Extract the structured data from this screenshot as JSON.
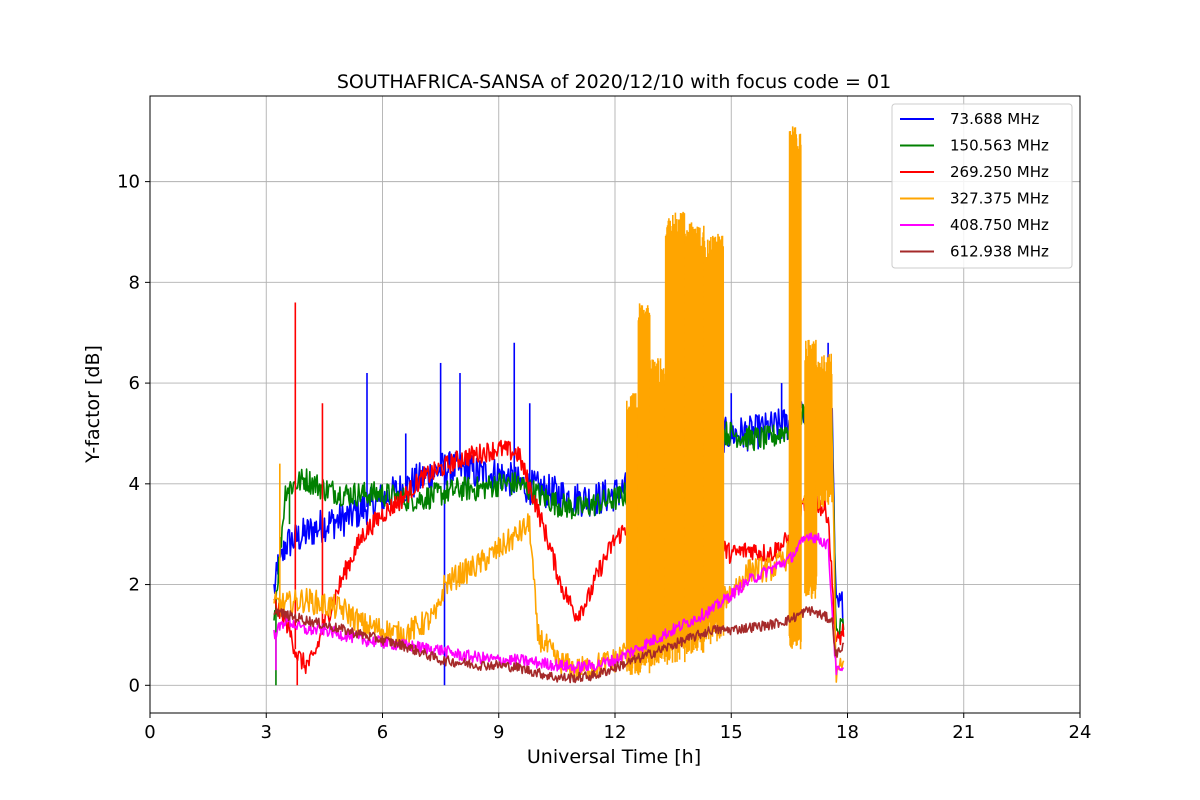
{
  "chart_data": {
    "type": "line",
    "title": "SOUTHAFRICA-SANSA of 2020/12/10 with focus code = 01",
    "xlabel": "Universal Time [h]",
    "ylabel": "Y-factor [dB]",
    "xlim": [
      0,
      24
    ],
    "ylim": [
      -0.55,
      11.7
    ],
    "xticks": [
      0,
      3,
      6,
      9,
      12,
      15,
      18,
      21,
      24
    ],
    "yticks": [
      0,
      2,
      4,
      6,
      8,
      10
    ],
    "grid": true,
    "legend_position": "top-right",
    "series": [
      {
        "name": " 73.688 MHz",
        "color": "#0000ff",
        "noise": 0.35,
        "spikes": [
          [
            3.3,
            2.6
          ],
          [
            5.6,
            6.2
          ],
          [
            6.6,
            5.0
          ],
          [
            7.5,
            6.4
          ],
          [
            8.0,
            6.2
          ],
          [
            9.4,
            6.8
          ],
          [
            7.6,
            0.0
          ],
          [
            9.8,
            5.6
          ],
          [
            15.0,
            5.8
          ],
          [
            16.3,
            6.0
          ],
          [
            17.5,
            6.8
          ]
        ],
        "points": [
          [
            3.2,
            1.9
          ],
          [
            3.5,
            2.8
          ],
          [
            4.0,
            3.0
          ],
          [
            4.5,
            3.2
          ],
          [
            5.0,
            3.3
          ],
          [
            5.5,
            3.5
          ],
          [
            6.0,
            3.7
          ],
          [
            6.5,
            3.9
          ],
          [
            7.0,
            4.1
          ],
          [
            7.5,
            4.3
          ],
          [
            8.0,
            4.3
          ],
          [
            8.5,
            4.2
          ],
          [
            9.0,
            4.2
          ],
          [
            9.5,
            4.0
          ],
          [
            10.0,
            3.9
          ],
          [
            10.5,
            3.8
          ],
          [
            11.0,
            3.7
          ],
          [
            11.5,
            3.7
          ],
          [
            12.0,
            3.8
          ],
          [
            12.3,
            3.9
          ],
          [
            14.5,
            4.9
          ],
          [
            15.0,
            5.0
          ],
          [
            15.5,
            5.0
          ],
          [
            16.0,
            5.1
          ],
          [
            16.5,
            5.2
          ],
          [
            17.0,
            5.4
          ],
          [
            17.6,
            5.4
          ],
          [
            17.7,
            1.5
          ],
          [
            17.9,
            1.6
          ]
        ]
      },
      {
        "name": "150.563 MHz",
        "color": "#008000",
        "noise": 0.25,
        "spikes": [
          [
            3.25,
            0.0
          ],
          [
            3.6,
            3.2
          ]
        ],
        "points": [
          [
            3.2,
            1.3
          ],
          [
            3.5,
            3.9
          ],
          [
            4.0,
            4.1
          ],
          [
            4.5,
            3.9
          ],
          [
            5.0,
            3.8
          ],
          [
            5.5,
            3.8
          ],
          [
            6.0,
            3.8
          ],
          [
            6.5,
            3.7
          ],
          [
            7.0,
            3.7
          ],
          [
            7.5,
            3.8
          ],
          [
            8.0,
            3.9
          ],
          [
            8.5,
            3.9
          ],
          [
            9.0,
            4.0
          ],
          [
            9.5,
            4.0
          ],
          [
            10.0,
            3.8
          ],
          [
            10.5,
            3.6
          ],
          [
            11.0,
            3.5
          ],
          [
            11.5,
            3.6
          ],
          [
            12.0,
            3.7
          ],
          [
            12.3,
            3.8
          ],
          [
            14.5,
            5.0
          ],
          [
            15.0,
            5.0
          ],
          [
            15.5,
            4.9
          ],
          [
            16.0,
            4.9
          ],
          [
            16.5,
            5.1
          ],
          [
            17.0,
            5.5
          ],
          [
            17.6,
            5.5
          ],
          [
            17.7,
            1.0
          ],
          [
            17.9,
            1.2
          ]
        ]
      },
      {
        "name": "269.250 MHz",
        "color": "#ff0000",
        "noise": 0.2,
        "spikes": [
          [
            3.75,
            7.6
          ],
          [
            3.8,
            0.0
          ],
          [
            4.45,
            5.6
          ]
        ],
        "points": [
          [
            3.2,
            1.6
          ],
          [
            3.5,
            1.3
          ],
          [
            3.8,
            0.6
          ],
          [
            4.0,
            0.4
          ],
          [
            4.2,
            0.5
          ],
          [
            4.5,
            1.2
          ],
          [
            5.0,
            2.2
          ],
          [
            5.5,
            3.0
          ],
          [
            6.0,
            3.4
          ],
          [
            6.5,
            3.7
          ],
          [
            7.0,
            4.1
          ],
          [
            7.5,
            4.3
          ],
          [
            8.0,
            4.5
          ],
          [
            8.5,
            4.6
          ],
          [
            9.0,
            4.7
          ],
          [
            9.5,
            4.6
          ],
          [
            10.0,
            3.5
          ],
          [
            10.3,
            2.8
          ],
          [
            10.6,
            2.0
          ],
          [
            11.0,
            1.4
          ],
          [
            11.3,
            1.7
          ],
          [
            11.6,
            2.3
          ],
          [
            12.0,
            2.9
          ],
          [
            12.5,
            3.3
          ],
          [
            13.0,
            3.4
          ],
          [
            14.0,
            3.0
          ],
          [
            14.5,
            2.9
          ],
          [
            15.0,
            2.6
          ],
          [
            15.5,
            2.7
          ],
          [
            16.0,
            2.6
          ],
          [
            16.5,
            2.9
          ],
          [
            17.0,
            3.8
          ],
          [
            17.5,
            3.4
          ],
          [
            17.7,
            0.8
          ],
          [
            17.9,
            1.1
          ]
        ]
      },
      {
        "name": "327.375 MHz",
        "color": "#ffa500",
        "noise": 0.25,
        "spikes": [
          [
            3.35,
            4.4
          ]
        ],
        "bands": [
          [
            12.3,
            12.6,
            0.2,
            5.8
          ],
          [
            12.6,
            12.9,
            0.2,
            7.6
          ],
          [
            12.9,
            13.3,
            0.3,
            6.5
          ],
          [
            13.3,
            13.8,
            0.4,
            9.4
          ],
          [
            13.8,
            14.3,
            0.6,
            9.2
          ],
          [
            14.3,
            14.8,
            0.8,
            9.0
          ],
          [
            16.5,
            16.8,
            0.7,
            11.1
          ],
          [
            16.9,
            17.2,
            1.7,
            6.9
          ],
          [
            17.2,
            17.6,
            3.5,
            6.6
          ]
        ],
        "points": [
          [
            3.2,
            1.6
          ],
          [
            3.5,
            1.6
          ],
          [
            4.0,
            1.7
          ],
          [
            4.5,
            1.6
          ],
          [
            5.0,
            1.5
          ],
          [
            5.5,
            1.2
          ],
          [
            6.0,
            1.1
          ],
          [
            6.5,
            1.0
          ],
          [
            7.0,
            1.2
          ],
          [
            7.4,
            1.4
          ],
          [
            7.6,
            2.0
          ],
          [
            8.0,
            2.2
          ],
          [
            8.5,
            2.4
          ],
          [
            9.0,
            2.7
          ],
          [
            9.5,
            3.0
          ],
          [
            9.8,
            3.2
          ],
          [
            10.0,
            1.0
          ],
          [
            10.5,
            0.5
          ],
          [
            11.0,
            0.3
          ],
          [
            11.5,
            0.4
          ],
          [
            12.0,
            0.5
          ],
          [
            12.3,
            0.7
          ],
          [
            14.8,
            1.7
          ],
          [
            15.5,
            2.3
          ],
          [
            16.0,
            2.3
          ],
          [
            16.4,
            2.5
          ],
          [
            17.6,
            5.2
          ],
          [
            17.7,
            0.2
          ],
          [
            17.9,
            0.4
          ]
        ]
      },
      {
        "name": "408.750 MHz",
        "color": "#ff00ff",
        "noise": 0.12,
        "spikes": [
          [
            3.25,
            0.3
          ]
        ],
        "points": [
          [
            3.2,
            1.0
          ],
          [
            3.5,
            1.3
          ],
          [
            4.0,
            1.1
          ],
          [
            4.5,
            1.1
          ],
          [
            5.0,
            1.0
          ],
          [
            5.5,
            0.9
          ],
          [
            6.0,
            0.85
          ],
          [
            6.5,
            0.8
          ],
          [
            7.0,
            0.75
          ],
          [
            7.5,
            0.7
          ],
          [
            8.0,
            0.6
          ],
          [
            8.5,
            0.55
          ],
          [
            9.0,
            0.5
          ],
          [
            9.5,
            0.5
          ],
          [
            10.0,
            0.45
          ],
          [
            10.5,
            0.4
          ],
          [
            11.0,
            0.35
          ],
          [
            11.5,
            0.4
          ],
          [
            12.0,
            0.5
          ],
          [
            12.5,
            0.7
          ],
          [
            13.0,
            0.9
          ],
          [
            13.5,
            1.1
          ],
          [
            14.0,
            1.3
          ],
          [
            14.5,
            1.5
          ],
          [
            15.0,
            1.8
          ],
          [
            15.5,
            2.1
          ],
          [
            16.0,
            2.3
          ],
          [
            16.5,
            2.5
          ],
          [
            17.0,
            3.0
          ],
          [
            17.5,
            2.8
          ],
          [
            17.7,
            0.3
          ],
          [
            17.9,
            0.25
          ]
        ]
      },
      {
        "name": "612.938 MHz",
        "color": "#a52a2a",
        "noise": 0.1,
        "spikes": [],
        "points": [
          [
            3.2,
            1.5
          ],
          [
            3.5,
            1.4
          ],
          [
            4.0,
            1.3
          ],
          [
            4.5,
            1.2
          ],
          [
            5.0,
            1.1
          ],
          [
            5.5,
            1.0
          ],
          [
            6.0,
            0.9
          ],
          [
            6.5,
            0.8
          ],
          [
            7.0,
            0.65
          ],
          [
            7.5,
            0.5
          ],
          [
            8.0,
            0.45
          ],
          [
            8.5,
            0.4
          ],
          [
            9.0,
            0.4
          ],
          [
            9.5,
            0.35
          ],
          [
            10.0,
            0.25
          ],
          [
            10.5,
            0.15
          ],
          [
            11.0,
            0.15
          ],
          [
            11.5,
            0.2
          ],
          [
            12.0,
            0.35
          ],
          [
            12.5,
            0.5
          ],
          [
            13.0,
            0.65
          ],
          [
            13.5,
            0.8
          ],
          [
            14.0,
            0.95
          ],
          [
            14.5,
            1.1
          ],
          [
            15.0,
            1.1
          ],
          [
            15.5,
            1.15
          ],
          [
            16.0,
            1.2
          ],
          [
            16.5,
            1.3
          ],
          [
            17.0,
            1.5
          ],
          [
            17.6,
            1.3
          ],
          [
            17.7,
            0.6
          ],
          [
            17.9,
            0.8
          ]
        ]
      }
    ]
  }
}
